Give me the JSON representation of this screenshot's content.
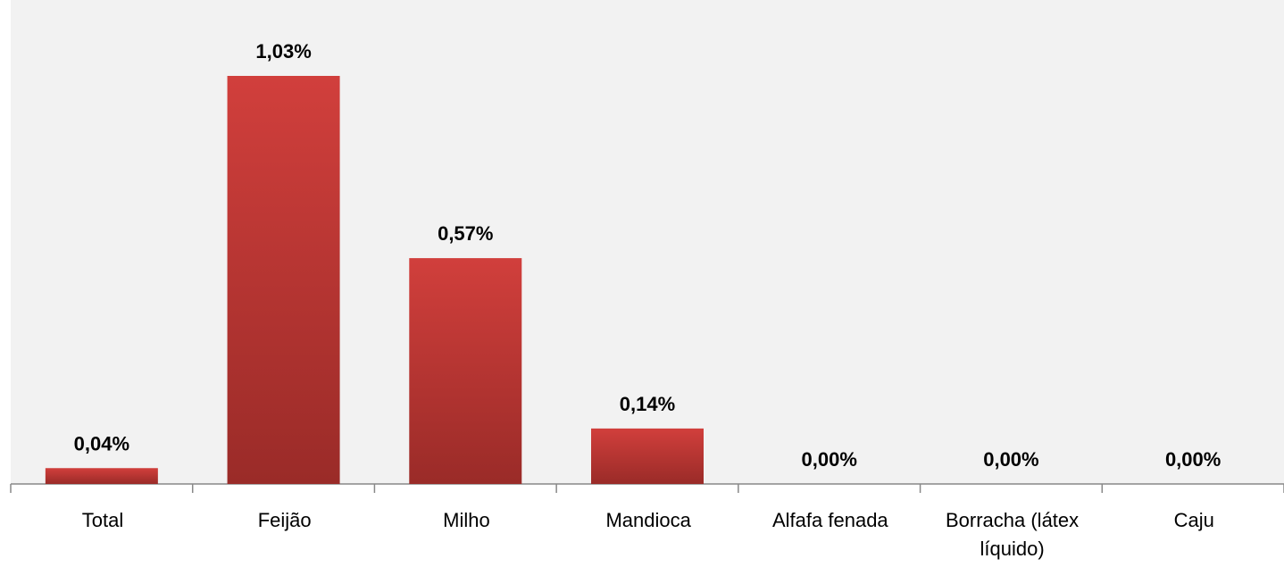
{
  "chart_data": {
    "type": "bar",
    "categories": [
      "Total",
      "Feijão",
      "Milho",
      "Mandioca",
      "Alfafa fenada",
      "Borracha (látex líquido)",
      "Caju"
    ],
    "values": [
      0.04,
      1.03,
      0.57,
      0.14,
      0,
      0,
      0
    ],
    "value_labels": [
      "0,04%",
      "1,03%",
      "0,57%",
      "0,14%",
      "0,00%",
      "0,00%",
      "0,00%"
    ],
    "color": "#d13f3c"
  }
}
